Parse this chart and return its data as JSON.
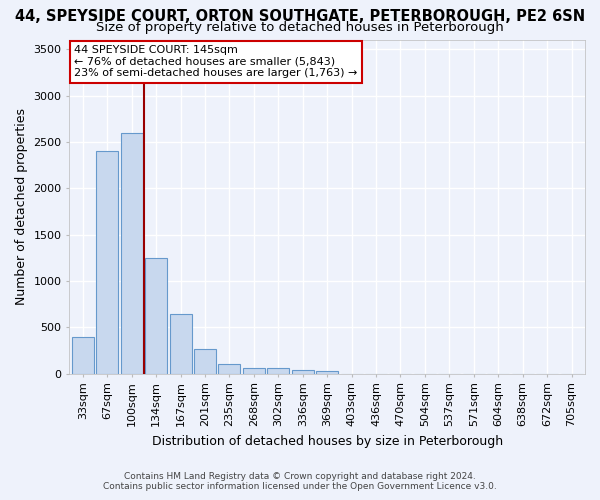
{
  "title_line1": "44, SPEYSIDE COURT, ORTON SOUTHGATE, PETERBOROUGH, PE2 6SN",
  "title_line2": "Size of property relative to detached houses in Peterborough",
  "xlabel": "Distribution of detached houses by size in Peterborough",
  "ylabel": "Number of detached properties",
  "footer_line1": "Contains HM Land Registry data © Crown copyright and database right 2024.",
  "footer_line2": "Contains public sector information licensed under the Open Government Licence v3.0.",
  "bar_labels": [
    "33sqm",
    "67sqm",
    "100sqm",
    "134sqm",
    "167sqm",
    "201sqm",
    "235sqm",
    "268sqm",
    "302sqm",
    "336sqm",
    "369sqm",
    "403sqm",
    "436sqm",
    "470sqm",
    "504sqm",
    "537sqm",
    "571sqm",
    "604sqm",
    "638sqm",
    "672sqm",
    "705sqm"
  ],
  "bar_values": [
    390,
    2400,
    2600,
    1250,
    640,
    260,
    100,
    65,
    60,
    40,
    25,
    0,
    0,
    0,
    0,
    0,
    0,
    0,
    0,
    0,
    0
  ],
  "bar_color": "#c8d8ee",
  "bar_edge_color": "#6699cc",
  "ylim": [
    0,
    3600
  ],
  "yticks": [
    0,
    500,
    1000,
    1500,
    2000,
    2500,
    3000,
    3500
  ],
  "vline_color": "#990000",
  "vline_pos": 2.5,
  "annotation_text": "44 SPEYSIDE COURT: 145sqm\n← 76% of detached houses are smaller (5,843)\n23% of semi-detached houses are larger (1,763) →",
  "annotation_box_color": "#ffffff",
  "annotation_box_edge": "#cc0000",
  "background_color": "#eef2fb",
  "grid_color": "#ffffff",
  "title_fontsize": 10.5,
  "subtitle_fontsize": 9.5,
  "axis_label_fontsize": 9,
  "tick_fontsize": 8,
  "annotation_fontsize": 8
}
